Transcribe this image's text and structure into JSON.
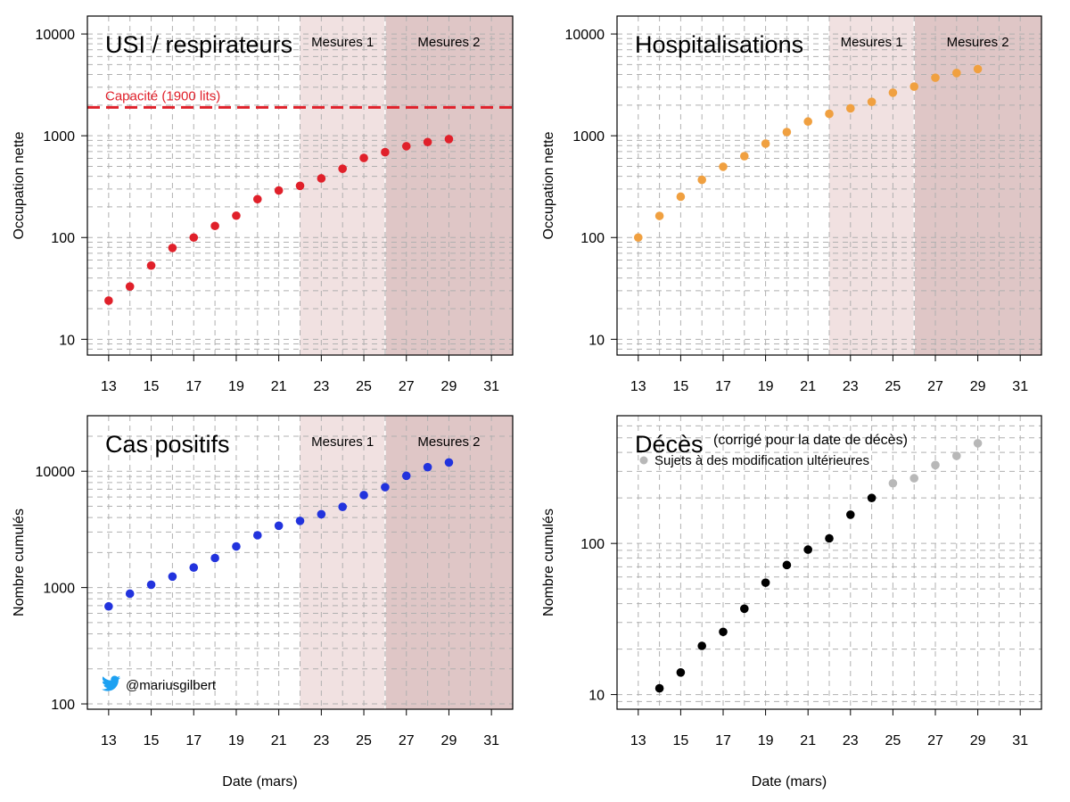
{
  "colors": {
    "icu": "#e0202a",
    "hosp": "#f0a040",
    "cases": "#2233dd",
    "deaths_confirmed": "#000000",
    "deaths_pending": "#b8b8b8",
    "mesures1_band": "#f1e1e1",
    "mesures2_band": "#dfc6c6",
    "grid": "#b0b0b0",
    "capacity_line": "#e0202a",
    "twitter": "#1da1f2"
  },
  "mesures1_label": "Mesures 1",
  "mesures2_label": "Mesures 2",
  "twitter_handle": "@mariusgilbert",
  "chart_data": [
    {
      "id": "icu",
      "type": "scatter",
      "title": "USI / respirateurs",
      "ylabel": "Occupation nette",
      "xlabel": "",
      "y_scale": "log",
      "xlim": [
        12,
        32
      ],
      "ylim": [
        7,
        15000
      ],
      "x_ticks": [
        13,
        15,
        17,
        19,
        21,
        23,
        25,
        27,
        29,
        31
      ],
      "y_ticks": [
        10,
        100,
        1000,
        10000
      ],
      "grid": true,
      "bands": [
        {
          "label": "Mesures 1",
          "from": 22,
          "to": 26
        },
        {
          "label": "Mesures 2",
          "from": 26,
          "to": 32
        }
      ],
      "reference_line": {
        "label": "Capacité (1900 lits)",
        "value": 1900
      },
      "series": [
        {
          "color_key": "icu",
          "x": [
            13,
            14,
            15,
            16,
            17,
            18,
            19,
            20,
            21,
            22,
            23,
            24,
            25,
            26,
            27,
            28,
            29
          ],
          "y": [
            24,
            33,
            53,
            79,
            100,
            130,
            164,
            238,
            290,
            322,
            381,
            474,
            605,
            690,
            789,
            867,
            927
          ]
        }
      ]
    },
    {
      "id": "hosp",
      "type": "scatter",
      "title": "Hospitalisations",
      "ylabel": "Occupation nette",
      "xlabel": "",
      "y_scale": "log",
      "xlim": [
        12,
        32
      ],
      "ylim": [
        7,
        15000
      ],
      "x_ticks": [
        13,
        15,
        17,
        19,
        21,
        23,
        25,
        27,
        29,
        31
      ],
      "y_ticks": [
        10,
        100,
        1000,
        10000
      ],
      "grid": true,
      "bands": [
        {
          "label": "Mesures 1",
          "from": 22,
          "to": 26
        },
        {
          "label": "Mesures 2",
          "from": 26,
          "to": 32
        }
      ],
      "series": [
        {
          "color_key": "hosp",
          "x": [
            13,
            14,
            15,
            16,
            17,
            18,
            19,
            20,
            21,
            22,
            23,
            24,
            25,
            26,
            27,
            28,
            29
          ],
          "y": [
            100,
            163,
            252,
            369,
            496,
            630,
            837,
            1088,
            1380,
            1643,
            1859,
            2152,
            2650,
            3042,
            3717,
            4138,
            4524
          ]
        }
      ]
    },
    {
      "id": "cases",
      "type": "scatter",
      "title": "Cas positifs",
      "ylabel": "Nombre cumulés",
      "xlabel": "Date (mars)",
      "y_scale": "log",
      "xlim": [
        12,
        32
      ],
      "ylim": [
        90,
        30000
      ],
      "x_ticks": [
        13,
        15,
        17,
        19,
        21,
        23,
        25,
        27,
        29,
        31
      ],
      "y_ticks": [
        100,
        1000,
        10000
      ],
      "grid": true,
      "bands": [
        {
          "label": "Mesures 1",
          "from": 22,
          "to": 26
        },
        {
          "label": "Mesures 2",
          "from": 26,
          "to": 32
        }
      ],
      "series": [
        {
          "color_key": "cases",
          "x": [
            13,
            14,
            15,
            16,
            17,
            18,
            19,
            20,
            21,
            22,
            23,
            24,
            25,
            26,
            27,
            28,
            29
          ],
          "y": [
            689,
            886,
            1058,
            1243,
            1486,
            1795,
            2257,
            2815,
            3401,
            3743,
            4269,
            4937,
            6235,
            7284,
            9134,
            10836,
            11899
          ]
        }
      ]
    },
    {
      "id": "deaths",
      "type": "scatter",
      "title": "Décès",
      "subtitle": "(corrigé pour la date de décès)",
      "ylabel": "Nombre cumulés",
      "xlabel": "Date (mars)",
      "y_scale": "log",
      "xlim": [
        12,
        32
      ],
      "ylim": [
        8,
        700
      ],
      "x_ticks": [
        13,
        15,
        17,
        19,
        21,
        23,
        25,
        27,
        29,
        31
      ],
      "y_ticks": [
        10,
        100
      ],
      "grid": true,
      "legend": {
        "label": "Sujets à des modification ultérieures",
        "color_key": "deaths_pending",
        "position": "top-left"
      },
      "series": [
        {
          "color_key": "deaths_confirmed",
          "x": [
            14,
            15,
            16,
            17,
            18,
            19,
            20,
            21,
            22,
            23,
            24
          ],
          "y": [
            11,
            14,
            21,
            26,
            37,
            55,
            72,
            91,
            108,
            155,
            200
          ]
        },
        {
          "color_key": "deaths_pending",
          "x": [
            25,
            26,
            27,
            28,
            29
          ],
          "y": [
            250,
            270,
            330,
            380,
            460
          ]
        }
      ]
    }
  ]
}
